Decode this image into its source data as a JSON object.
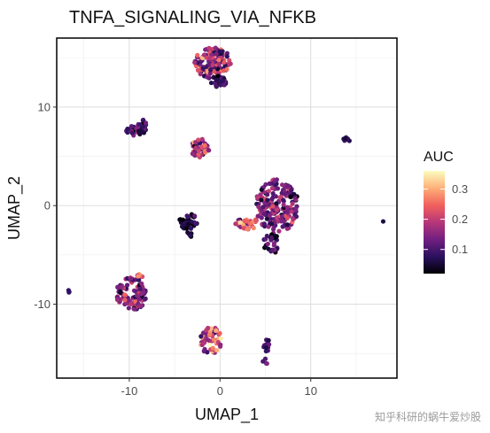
{
  "chart_data": {
    "type": "scatter",
    "title": "TNFA_SIGNALING_VIA_NFKB",
    "xlabel": "UMAP_1",
    "ylabel": "UMAP_2",
    "xlim": [
      -18,
      19.5
    ],
    "ylim": [
      -17.5,
      17
    ],
    "x_ticks": [
      -10,
      0,
      10
    ],
    "y_ticks": [
      -10,
      0,
      10
    ],
    "grid": true,
    "legend": {
      "title": "AUC",
      "position": "right",
      "ticks": [
        0.1,
        0.2,
        0.3
      ],
      "range": [
        0.02,
        0.36
      ]
    },
    "colormap": [
      "#000004",
      "#2c115f",
      "#721f81",
      "#b73779",
      "#f1605d",
      "#feb078",
      "#fcfdbf"
    ],
    "clusters": [
      {
        "cx": -0.8,
        "cy": 14.5,
        "rx": 2.0,
        "ry": 1.6,
        "n": 150,
        "auc_mean": 0.16,
        "auc_sd": 0.07
      },
      {
        "cx": -0.1,
        "cy": 12.6,
        "rx": 0.9,
        "ry": 0.6,
        "n": 30,
        "auc_mean": 0.08,
        "auc_sd": 0.04
      },
      {
        "cx": -9.5,
        "cy": 7.6,
        "rx": 0.9,
        "ry": 0.5,
        "n": 25,
        "auc_mean": 0.1,
        "auc_sd": 0.04
      },
      {
        "cx": -8.6,
        "cy": 8.0,
        "rx": 0.5,
        "ry": 0.9,
        "n": 20,
        "auc_mean": 0.09,
        "auc_sd": 0.04
      },
      {
        "cx": -2.2,
        "cy": 5.8,
        "rx": 1.0,
        "ry": 1.0,
        "n": 45,
        "auc_mean": 0.17,
        "auc_sd": 0.06
      },
      {
        "cx": 14.0,
        "cy": 6.7,
        "rx": 0.5,
        "ry": 0.25,
        "n": 8,
        "auc_mean": 0.08,
        "auc_sd": 0.03
      },
      {
        "cx": 6.3,
        "cy": 0.0,
        "rx": 2.4,
        "ry": 2.7,
        "n": 200,
        "auc_mean": 0.13,
        "auc_sd": 0.05
      },
      {
        "cx": 5.7,
        "cy": -3.8,
        "rx": 0.9,
        "ry": 1.1,
        "n": 30,
        "auc_mean": 0.09,
        "auc_sd": 0.04
      },
      {
        "cx": 3.0,
        "cy": -1.8,
        "rx": 1.3,
        "ry": 0.6,
        "n": 35,
        "auc_mean": 0.22,
        "auc_sd": 0.05
      },
      {
        "cx": -3.5,
        "cy": -1.6,
        "rx": 1.0,
        "ry": 0.8,
        "n": 35,
        "auc_mean": 0.06,
        "auc_sd": 0.03
      },
      {
        "cx": -3.4,
        "cy": -3.0,
        "rx": 0.3,
        "ry": 0.4,
        "n": 6,
        "auc_mean": 0.04,
        "auc_sd": 0.02
      },
      {
        "cx": -9.8,
        "cy": -9.0,
        "rx": 1.7,
        "ry": 1.7,
        "n": 110,
        "auc_mean": 0.14,
        "auc_sd": 0.06
      },
      {
        "cx": -8.8,
        "cy": -7.0,
        "rx": 0.4,
        "ry": 0.3,
        "n": 6,
        "auc_mean": 0.25,
        "auc_sd": 0.04
      },
      {
        "cx": -16.5,
        "cy": -8.7,
        "rx": 0.25,
        "ry": 0.2,
        "n": 4,
        "auc_mean": 0.12,
        "auc_sd": 0.03
      },
      {
        "cx": -1.0,
        "cy": -13.7,
        "rx": 1.2,
        "ry": 1.4,
        "n": 60,
        "auc_mean": 0.22,
        "auc_sd": 0.07
      },
      {
        "cx": 5.2,
        "cy": -14.3,
        "rx": 0.4,
        "ry": 0.7,
        "n": 14,
        "auc_mean": 0.08,
        "auc_sd": 0.03
      },
      {
        "cx": 5.0,
        "cy": -15.8,
        "rx": 0.3,
        "ry": 0.3,
        "n": 4,
        "auc_mean": 0.1,
        "auc_sd": 0.03
      },
      {
        "cx": 18.0,
        "cy": -1.6,
        "rx": 0.1,
        "ry": 0.1,
        "n": 1,
        "auc_mean": 0.06,
        "auc_sd": 0.0
      }
    ]
  },
  "watermark": "知乎科研的蜗牛爱炒股"
}
